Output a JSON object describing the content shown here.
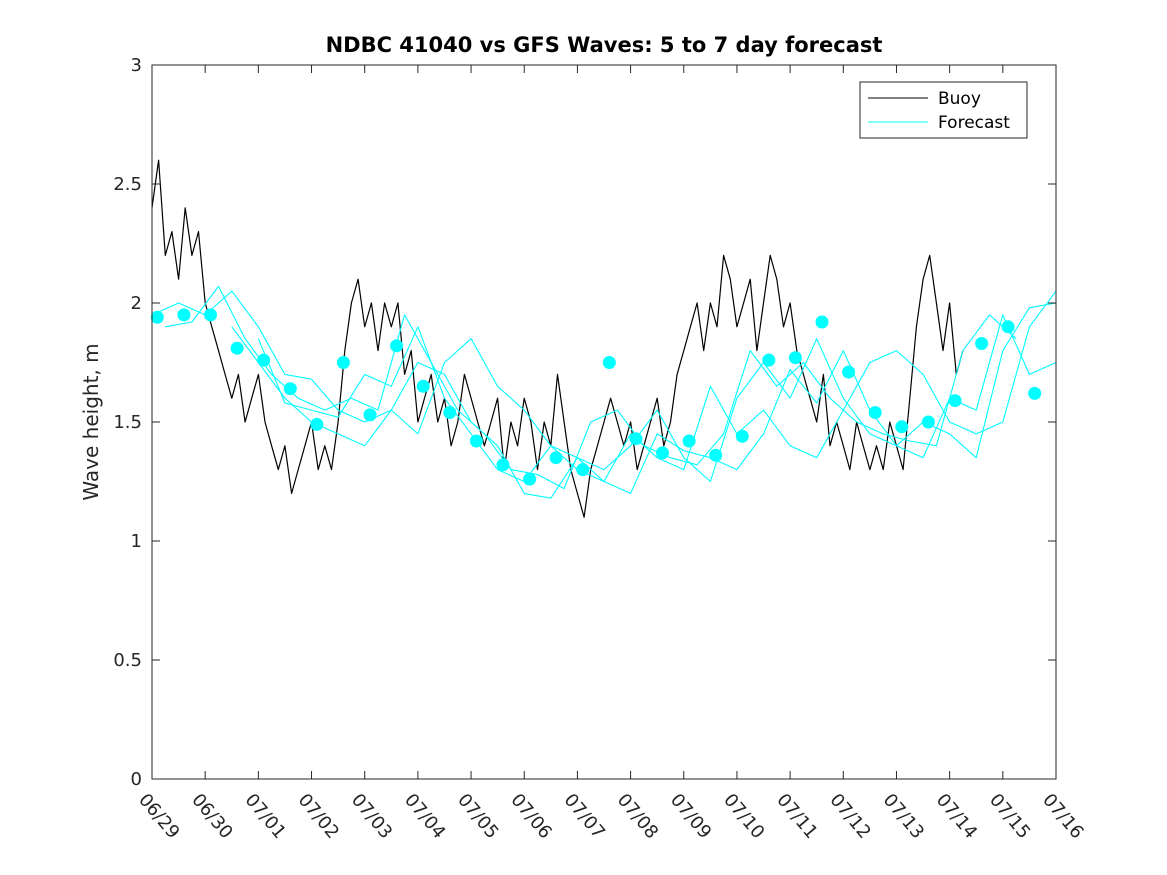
{
  "chart_data": {
    "type": "line",
    "title": "NDBC 41040 vs GFS Waves: 5 to 7 day forecast",
    "xlabel": "",
    "ylabel": "Wave height, m",
    "xlim": [
      "06/29",
      "07/16"
    ],
    "ylim": [
      0,
      3
    ],
    "xtick_labels": [
      "06/29",
      "06/30",
      "07/01",
      "07/02",
      "07/03",
      "07/04",
      "07/05",
      "07/06",
      "07/07",
      "07/08",
      "07/09",
      "07/10",
      "07/11",
      "07/12",
      "07/13",
      "07/14",
      "07/15",
      "07/16"
    ],
    "ytick_values": [
      0,
      0.5,
      1,
      1.5,
      2,
      2.5,
      3
    ],
    "ytick_labels": [
      "0",
      "0.5",
      "1",
      "1.5",
      "2",
      "2.5",
      "3"
    ],
    "grid": false,
    "legend": {
      "placement": "top-right",
      "entries": [
        "Buoy",
        "Forecast"
      ]
    },
    "colors": {
      "buoy": "#000000",
      "forecast": "#00ffff"
    },
    "series": [
      {
        "name": "Buoy",
        "style": "line",
        "x": [
          0,
          0.125,
          0.25,
          0.375,
          0.5,
          0.625,
          0.75,
          0.875,
          1,
          1.125,
          1.25,
          1.375,
          1.5,
          1.625,
          1.75,
          1.875,
          2,
          2.125,
          2.25,
          2.375,
          2.5,
          2.625,
          2.75,
          2.875,
          3,
          3.125,
          3.25,
          3.375,
          3.5,
          3.625,
          3.75,
          3.875,
          4,
          4.125,
          4.25,
          4.375,
          4.5,
          4.625,
          4.75,
          4.875,
          5,
          5.125,
          5.25,
          5.375,
          5.5,
          5.625,
          5.75,
          5.875,
          6,
          6.125,
          6.25,
          6.375,
          6.5,
          6.625,
          6.75,
          6.875,
          7,
          7.125,
          7.25,
          7.375,
          7.5,
          7.625,
          7.75,
          7.875,
          8,
          8.125,
          8.25,
          8.375,
          8.5,
          8.625,
          8.75,
          8.875,
          9,
          9.125,
          9.25,
          9.375,
          9.5,
          9.625,
          9.75,
          9.875,
          10,
          10.125,
          10.25,
          10.375,
          10.5,
          10.625,
          10.75,
          10.875,
          11,
          11.125,
          11.25,
          11.375,
          11.5,
          11.625,
          11.75,
          11.875,
          12,
          12.125,
          12.25,
          12.375,
          12.5,
          12.625,
          12.75,
          12.875,
          13,
          13.125,
          13.25,
          13.375,
          13.5,
          13.625,
          13.75,
          13.875,
          14,
          14.125,
          14.25,
          14.375,
          14.5,
          14.625,
          14.75,
          14.875,
          15,
          15.125,
          15.25
        ],
        "y": [
          2.4,
          2.6,
          2.2,
          2.3,
          2.1,
          2.4,
          2.2,
          2.3,
          2.0,
          1.9,
          1.8,
          1.7,
          1.6,
          1.7,
          1.5,
          1.6,
          1.7,
          1.5,
          1.4,
          1.3,
          1.4,
          1.2,
          1.3,
          1.4,
          1.5,
          1.3,
          1.4,
          1.3,
          1.5,
          1.8,
          2.0,
          2.1,
          1.9,
          2.0,
          1.8,
          2.0,
          1.9,
          2.0,
          1.7,
          1.8,
          1.5,
          1.6,
          1.7,
          1.5,
          1.6,
          1.4,
          1.5,
          1.7,
          1.6,
          1.5,
          1.4,
          1.5,
          1.6,
          1.3,
          1.5,
          1.4,
          1.6,
          1.5,
          1.3,
          1.5,
          1.4,
          1.7,
          1.5,
          1.3,
          1.2,
          1.1,
          1.3,
          1.4,
          1.5,
          1.6,
          1.5,
          1.4,
          1.5,
          1.3,
          1.4,
          1.5,
          1.6,
          1.4,
          1.5,
          1.7,
          1.8,
          1.9,
          2.0,
          1.8,
          2.0,
          1.9,
          2.2,
          2.1,
          1.9,
          2.0,
          2.1,
          1.8,
          2.0,
          2.2,
          2.1,
          1.9,
          2.0,
          1.8,
          1.7,
          1.6,
          1.5,
          1.7,
          1.4,
          1.5,
          1.4,
          1.3,
          1.5,
          1.4,
          1.3,
          1.4,
          1.3,
          1.5,
          1.4,
          1.3,
          1.6,
          1.9,
          2.1,
          2.2,
          2.0,
          1.8,
          2.0,
          1.7,
          1.8
        ]
      },
      {
        "name": "Forecast",
        "style": "line",
        "x": [
          0,
          0.5,
          1,
          1.5,
          2,
          2.5,
          3,
          3.5,
          4,
          4.5,
          5,
          5.5,
          6,
          6.5,
          7,
          7.5,
          8,
          8.5,
          9,
          9.5,
          10,
          10.5,
          11,
          11.5,
          12,
          12.5,
          13,
          13.5,
          14,
          14.5,
          15,
          15.5,
          16,
          16.5,
          17
        ],
        "y": [
          1.95,
          2.0,
          1.95,
          2.05,
          1.9,
          1.7,
          1.68,
          1.55,
          1.5,
          1.55,
          1.45,
          1.75,
          1.85,
          1.65,
          1.55,
          1.4,
          1.3,
          1.25,
          1.45,
          1.35,
          1.3,
          1.65,
          1.45,
          1.55,
          1.4,
          1.35,
          1.55,
          1.75,
          1.8,
          1.7,
          1.5,
          1.45,
          1.5,
          1.9,
          2.05
        ]
      },
      {
        "name": "Forecast",
        "style": "line",
        "x": [
          0.25,
          0.75,
          1.25,
          1.75,
          2.25,
          2.75,
          3.25,
          3.75,
          4.25,
          4.75,
          5.25,
          5.75,
          6.25,
          6.75,
          7.25,
          7.75,
          8.25,
          8.75,
          9.25,
          9.75,
          10.25,
          10.75,
          11.25,
          11.75,
          12.25,
          12.75,
          13.25,
          13.75,
          14.25,
          14.75,
          15.25,
          15.75,
          16.25
        ],
        "y": [
          1.9,
          1.92,
          2.07,
          1.85,
          1.7,
          1.6,
          1.55,
          1.6,
          1.55,
          1.95,
          1.75,
          1.55,
          1.45,
          1.3,
          1.28,
          1.22,
          1.5,
          1.55,
          1.4,
          1.35,
          1.32,
          1.45,
          1.8,
          1.65,
          1.75,
          1.6,
          1.5,
          1.45,
          1.42,
          1.4,
          1.8,
          1.95,
          1.85
        ]
      },
      {
        "name": "Forecast",
        "style": "line",
        "x": [
          1.5,
          2,
          2.5,
          3,
          3.5,
          4,
          4.5,
          5,
          5.5,
          6,
          6.5,
          7,
          7.5,
          8,
          8.5,
          9,
          9.5,
          10,
          10.5,
          11,
          11.5,
          12,
          12.5,
          13,
          13.5,
          14,
          14.5,
          15,
          15.5,
          16,
          16.5,
          17
        ],
        "y": [
          1.9,
          1.75,
          1.6,
          1.5,
          1.45,
          1.4,
          1.55,
          1.75,
          1.7,
          1.5,
          1.4,
          1.2,
          1.18,
          1.35,
          1.3,
          1.4,
          1.55,
          1.35,
          1.25,
          1.6,
          1.75,
          1.6,
          1.85,
          1.6,
          1.45,
          1.4,
          1.5,
          1.45,
          1.35,
          1.8,
          1.98,
          2.0
        ]
      },
      {
        "name": "Forecast",
        "style": "line",
        "x": [
          2,
          2.5,
          3,
          3.5,
          4,
          4.5,
          5,
          5.5,
          6,
          6.5,
          7,
          7.5,
          8,
          8.5,
          9,
          9.5,
          10,
          10.5,
          11,
          11.5,
          12,
          12.5,
          13,
          13.5,
          14,
          14.5,
          15,
          15.5,
          16,
          16.5,
          17
        ],
        "y": [
          1.85,
          1.58,
          1.55,
          1.52,
          1.7,
          1.65,
          1.9,
          1.6,
          1.45,
          1.3,
          1.25,
          1.4,
          1.35,
          1.25,
          1.2,
          1.45,
          1.38,
          1.35,
          1.3,
          1.45,
          1.72,
          1.58,
          1.8,
          1.55,
          1.4,
          1.35,
          1.6,
          1.55,
          1.95,
          1.7,
          1.75
        ]
      },
      {
        "name": "Forecast",
        "style": "markers",
        "x": [
          0.1,
          0.6,
          1.1,
          1.6,
          2.1,
          2.6,
          3.1,
          3.6,
          4.1,
          4.6,
          5.1,
          5.6,
          6.1,
          6.6,
          7.1,
          7.6,
          8.1,
          8.6,
          9.1,
          9.6,
          10.1,
          10.6,
          11.1,
          11.6,
          12.1,
          12.6,
          13.1,
          13.6,
          14.1,
          14.6,
          15.1,
          15.6,
          16.1,
          16.6
        ],
        "y": [
          1.94,
          1.95,
          1.95,
          1.81,
          1.76,
          1.64,
          1.49,
          1.75,
          1.53,
          1.82,
          1.65,
          1.54,
          1.42,
          1.32,
          1.26,
          1.35,
          1.3,
          1.75,
          1.43,
          1.37,
          1.42,
          1.36,
          1.44,
          1.76,
          1.77,
          1.92,
          1.71,
          1.54,
          1.48,
          1.5,
          1.59,
          1.83,
          1.9,
          1.62
        ]
      }
    ]
  }
}
